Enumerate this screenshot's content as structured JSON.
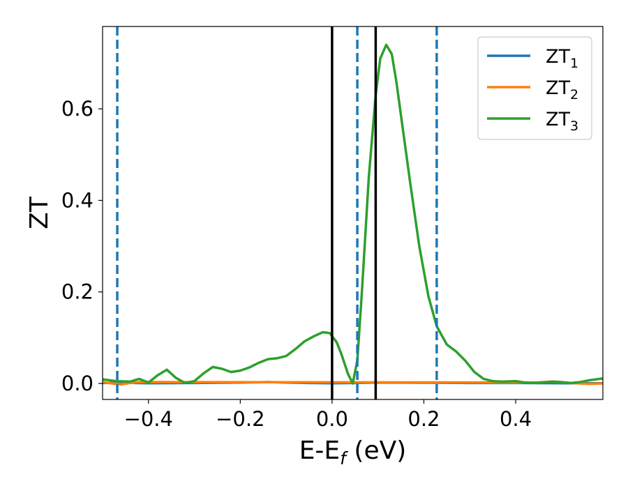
{
  "chart_data": {
    "type": "line",
    "xlabel": {
      "main": "E-E",
      "sub": "f",
      "suffix": " (eV)"
    },
    "ylabel": "ZT",
    "xlim": [
      -0.5,
      0.59
    ],
    "ylim": [
      -0.035,
      0.78
    ],
    "xticks": [
      {
        "value": -0.4,
        "label": "−0.4"
      },
      {
        "value": -0.2,
        "label": "−0.2"
      },
      {
        "value": 0.0,
        "label": "0.0"
      },
      {
        "value": 0.2,
        "label": "0.2"
      },
      {
        "value": 0.4,
        "label": "0.4"
      }
    ],
    "yticks": [
      {
        "value": 0.0,
        "label": "0.0"
      },
      {
        "value": 0.2,
        "label": "0.2"
      },
      {
        "value": 0.4,
        "label": "0.4"
      },
      {
        "value": 0.6,
        "label": "0.6"
      }
    ],
    "grid": false,
    "legend_position": "top-right",
    "vlines": [
      {
        "x": 0.0,
        "style": "solid",
        "color": "#000000"
      },
      {
        "x": 0.095,
        "style": "solid",
        "color": "#000000"
      },
      {
        "x": -0.468,
        "style": "dashed",
        "color": "#1f77b4"
      },
      {
        "x": 0.055,
        "style": "dashed",
        "color": "#1f77b4"
      },
      {
        "x": 0.228,
        "style": "dashed",
        "color": "#1f77b4"
      }
    ],
    "series": [
      {
        "name": "ZT",
        "sub": "1",
        "color": "#1f77b4",
        "x": [
          -0.5,
          -0.46,
          -0.4,
          -0.3,
          -0.2,
          -0.14,
          -0.1,
          -0.05,
          0.0,
          0.05,
          0.1,
          0.2,
          0.3,
          0.4,
          0.5,
          0.59
        ],
        "y": [
          0.001,
          0.0015,
          0.0005,
          0.001,
          0.002,
          0.003,
          0.002,
          0.001,
          0.0005,
          0.001,
          0.002,
          0.0015,
          0.001,
          0.001,
          0.0005,
          0.0005
        ]
      },
      {
        "name": "ZT",
        "sub": "2",
        "color": "#ff7f0e",
        "x": [
          -0.5,
          -0.48,
          -0.46,
          -0.44,
          -0.42,
          0.44,
          0.48,
          0.52,
          0.56,
          0.59
        ],
        "y": [
          0.003,
          0.0,
          -0.002,
          0.001,
          0.003,
          0.002,
          0.004,
          0.001,
          -0.001,
          0.0
        ]
      },
      {
        "name": "ZT",
        "sub": "3",
        "color": "#2ca02c",
        "x": [
          -0.5,
          -0.47,
          -0.44,
          -0.42,
          -0.4,
          -0.38,
          -0.36,
          -0.34,
          -0.32,
          -0.3,
          -0.28,
          -0.26,
          -0.24,
          -0.22,
          -0.2,
          -0.18,
          -0.16,
          -0.14,
          -0.12,
          -0.1,
          -0.08,
          -0.06,
          -0.04,
          -0.02,
          -0.005,
          0.01,
          0.02,
          0.035,
          0.045,
          0.055,
          0.065,
          0.08,
          0.095,
          0.105,
          0.118,
          0.13,
          0.14,
          0.155,
          0.17,
          0.19,
          0.21,
          0.228,
          0.25,
          0.27,
          0.29,
          0.31,
          0.33,
          0.35,
          0.37,
          0.4,
          0.42,
          0.45,
          0.48,
          0.5,
          0.52,
          0.54,
          0.56,
          0.59
        ],
        "y": [
          0.009,
          0.005,
          0.004,
          0.01,
          0.002,
          0.018,
          0.03,
          0.012,
          0.001,
          0.005,
          0.022,
          0.036,
          0.032,
          0.025,
          0.028,
          0.035,
          0.045,
          0.053,
          0.055,
          0.06,
          0.075,
          0.092,
          0.103,
          0.112,
          0.11,
          0.09,
          0.065,
          0.02,
          0.0,
          0.05,
          0.2,
          0.45,
          0.63,
          0.71,
          0.74,
          0.72,
          0.66,
          0.55,
          0.44,
          0.3,
          0.19,
          0.125,
          0.085,
          0.07,
          0.05,
          0.025,
          0.01,
          0.005,
          0.004,
          0.005,
          0.002,
          0.001,
          0.004,
          0.003,
          0.001,
          0.003,
          0.007,
          0.011
        ]
      }
    ]
  }
}
